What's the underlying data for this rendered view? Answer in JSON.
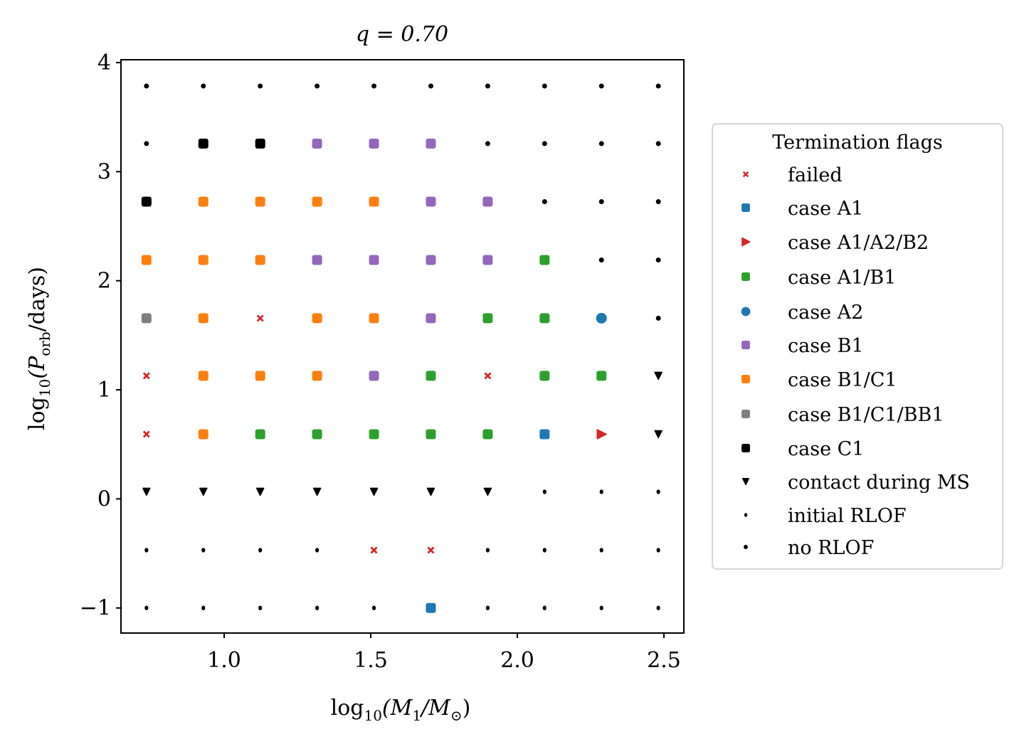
{
  "chart_data": {
    "type": "scatter",
    "title": "q = 0.70",
    "xlabel_parts": [
      "log",
      "10",
      "(M",
      "1",
      "/M",
      "⊙",
      ")"
    ],
    "ylabel_parts": [
      "log",
      "10",
      "(P",
      "orb",
      "/days)"
    ],
    "xlim": [
      0.648,
      2.568
    ],
    "ylim": [
      -1.23,
      4.026
    ],
    "xticks": [
      1.0,
      1.5,
      2.0,
      2.5
    ],
    "xtick_labels": [
      "1.0",
      "1.5",
      "2.0",
      "2.5"
    ],
    "yticks": [
      -1,
      0,
      1,
      2,
      3,
      4
    ],
    "ytick_labels": [
      "−1",
      "0",
      "1",
      "2",
      "3",
      "4"
    ],
    "grid": false,
    "x": [
      0.735,
      0.929,
      1.123,
      1.317,
      1.511,
      1.705,
      1.899,
      2.093,
      2.287,
      2.481
    ],
    "y": [
      3.785,
      3.257,
      2.725,
      2.19,
      1.656,
      1.128,
      0.593,
      0.065,
      -0.47,
      -1.0
    ],
    "flags_by_row": [
      [
        "no RLOF",
        "no RLOF",
        "no RLOF",
        "no RLOF",
        "no RLOF",
        "no RLOF",
        "no RLOF",
        "no RLOF",
        "no RLOF",
        "no RLOF"
      ],
      [
        "no RLOF",
        "case C1",
        "case C1",
        "case B1",
        "case B1",
        "case B1",
        "no RLOF",
        "no RLOF",
        "no RLOF",
        "no RLOF"
      ],
      [
        "case C1",
        "case B1/C1",
        "case B1/C1",
        "case B1/C1",
        "case B1/C1",
        "case B1",
        "case B1",
        "no RLOF",
        "no RLOF",
        "no RLOF"
      ],
      [
        "case B1/C1",
        "case B1/C1",
        "case B1/C1",
        "case B1",
        "case B1",
        "case B1",
        "case B1",
        "case A1/B1",
        "no RLOF",
        "no RLOF"
      ],
      [
        "case B1/C1/BB1",
        "case B1/C1",
        "failed",
        "case B1/C1",
        "case B1/C1",
        "case B1",
        "case A1/B1",
        "case A1/B1",
        "case A2",
        "no RLOF"
      ],
      [
        "failed",
        "case B1/C1",
        "case B1/C1",
        "case B1/C1",
        "case B1",
        "case A1/B1",
        "failed",
        "case A1/B1",
        "case A1/B1",
        "contact during MS"
      ],
      [
        "failed",
        "case B1/C1",
        "case A1/B1",
        "case A1/B1",
        "case A1/B1",
        "case A1/B1",
        "case A1/B1",
        "case A1",
        "case A1/A2/B2",
        "contact during MS"
      ],
      [
        "contact during MS",
        "contact during MS",
        "contact during MS",
        "contact during MS",
        "contact during MS",
        "contact during MS",
        "contact during MS",
        "initial RLOF",
        "initial RLOF",
        "initial RLOF"
      ],
      [
        "initial RLOF",
        "initial RLOF",
        "initial RLOF",
        "initial RLOF",
        "failed",
        "failed",
        "initial RLOF",
        "initial RLOF",
        "initial RLOF",
        "initial RLOF"
      ],
      [
        "initial RLOF",
        "initial RLOF",
        "initial RLOF",
        "initial RLOF",
        "initial RLOF",
        "case A1",
        "initial RLOF",
        "initial RLOF",
        "initial RLOF",
        "initial RLOF"
      ]
    ],
    "legend": {
      "title": "Termination flags",
      "placement": "right, outside",
      "entries": [
        {
          "label": "failed",
          "marker": "x",
          "color": "#d62728"
        },
        {
          "label": "case A1",
          "marker": "square",
          "color": "#1f77b4"
        },
        {
          "label": "case A1/A2/B2",
          "marker": "triangle-right",
          "color": "#d62728"
        },
        {
          "label": "case A1/B1",
          "marker": "square",
          "color": "#2ca02c"
        },
        {
          "label": "case A2",
          "marker": "circle",
          "color": "#1f77b4"
        },
        {
          "label": "case B1",
          "marker": "square",
          "color": "#9467bd"
        },
        {
          "label": "case B1/C1",
          "marker": "square",
          "color": "#ff7f0e"
        },
        {
          "label": "case B1/C1/BB1",
          "marker": "square",
          "color": "#7f7f7f"
        },
        {
          "label": "case C1",
          "marker": "square",
          "color": "#000000"
        },
        {
          "label": "contact during MS",
          "marker": "triangle-down",
          "color": "#000000"
        },
        {
          "label": "initial RLOF",
          "marker": "plus-dot",
          "color": "#000000"
        },
        {
          "label": "no RLOF",
          "marker": "dot",
          "color": "#000000"
        }
      ]
    }
  }
}
